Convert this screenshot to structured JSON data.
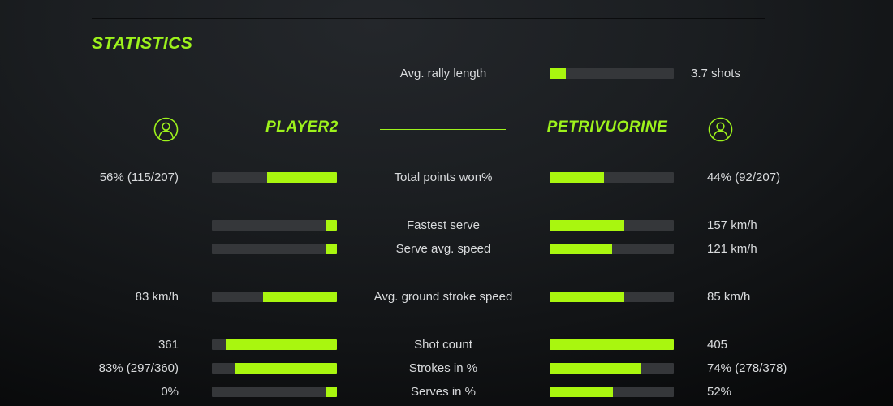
{
  "colors": {
    "accent": "#9df21c",
    "fill": "#a9f60f",
    "track": "#35373a",
    "text": "#d9dbdd"
  },
  "title": "STATISTICS",
  "rally": {
    "label": "Avg. rally length",
    "value": "3.7 shots",
    "fill_pct": 13
  },
  "players": {
    "left": {
      "name": "PLAYER2"
    },
    "right": {
      "name": "PETRIVUORINE"
    }
  },
  "icons": {
    "left_avatar": "person-icon",
    "right_avatar": "person-icon"
  },
  "rows": [
    {
      "label": "Total points won%",
      "left": {
        "value": "56% (115/207)",
        "fill_pct": 56
      },
      "right": {
        "value": "44% (92/207)",
        "fill_pct": 44
      }
    },
    {
      "label": "Fastest serve",
      "left": {
        "value": "",
        "fill_pct": 9
      },
      "right": {
        "value": "157 km/h",
        "fill_pct": 60
      }
    },
    {
      "label": "Serve avg. speed",
      "left": {
        "value": "",
        "fill_pct": 9
      },
      "right": {
        "value": "121 km/h",
        "fill_pct": 50
      }
    },
    {
      "label": "Avg. ground stroke speed",
      "left": {
        "value": "83 km/h",
        "fill_pct": 59
      },
      "right": {
        "value": "85 km/h",
        "fill_pct": 60
      }
    },
    {
      "label": "Shot count",
      "left": {
        "value": "361",
        "fill_pct": 89
      },
      "right": {
        "value": "405",
        "fill_pct": 100
      }
    },
    {
      "label": "Strokes in %",
      "left": {
        "value": "83% (297/360)",
        "fill_pct": 82
      },
      "right": {
        "value": "74% (278/378)",
        "fill_pct": 73
      }
    },
    {
      "label": "Serves in %",
      "left": {
        "value": "0%",
        "fill_pct": 9
      },
      "right": {
        "value": "52%",
        "fill_pct": 51
      }
    }
  ]
}
